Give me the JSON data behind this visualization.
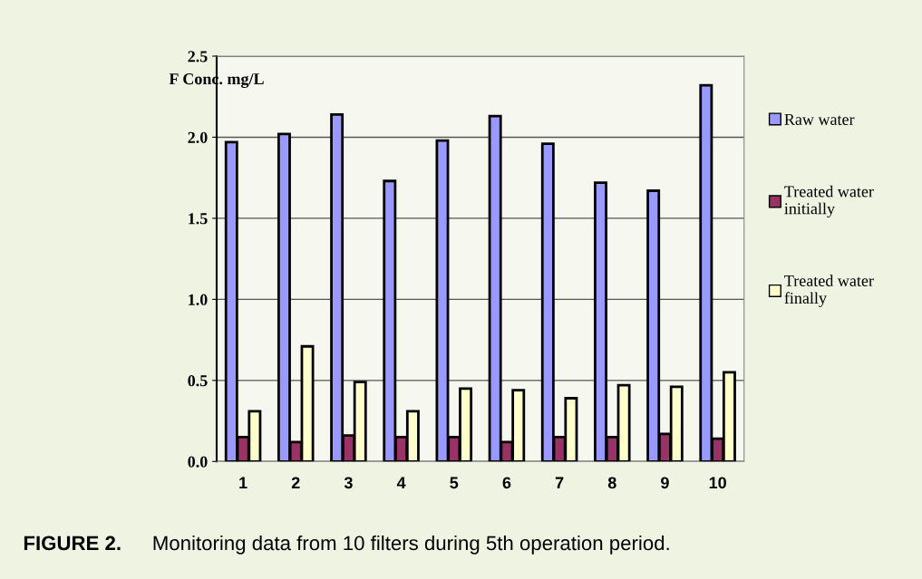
{
  "chart_data": {
    "type": "bar",
    "ylabel": "F Conc. mg/L",
    "categories": [
      "1",
      "2",
      "3",
      "4",
      "5",
      "6",
      "7",
      "8",
      "9",
      "10"
    ],
    "series": [
      {
        "name": "Raw water",
        "color": "#9999ff",
        "values": [
          1.97,
          2.02,
          2.14,
          1.73,
          1.98,
          2.13,
          1.96,
          1.72,
          1.67,
          2.32
        ]
      },
      {
        "name": "Treated water initially",
        "color": "#993366",
        "values": [
          0.15,
          0.12,
          0.16,
          0.15,
          0.15,
          0.12,
          0.15,
          0.15,
          0.17,
          0.14
        ]
      },
      {
        "name": "Treated water finally",
        "color": "#ffffcc",
        "values": [
          0.31,
          0.71,
          0.49,
          0.31,
          0.45,
          0.44,
          0.39,
          0.47,
          0.46,
          0.55
        ]
      }
    ],
    "ylim": [
      0,
      2.5
    ],
    "yticks": [
      {
        "value": 0,
        "label": "0.0"
      },
      {
        "value": 0.5,
        "label": "0.5"
      },
      {
        "value": 1,
        "label": "1.0"
      },
      {
        "value": 1.5,
        "label": "1.5"
      },
      {
        "value": 2,
        "label": "2.0"
      },
      {
        "value": 2.5,
        "label": "2.5"
      }
    ],
    "grid": "y",
    "legend": "right",
    "annotations": [
      "FIGURE 2.",
      "Monitoring data from 10 filters during 5th operation period."
    ]
  }
}
